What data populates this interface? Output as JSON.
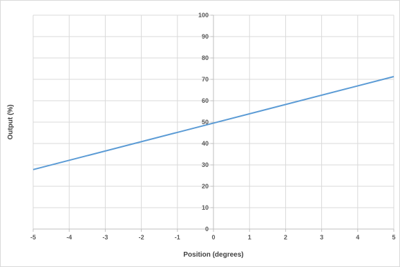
{
  "chart_data": {
    "type": "line",
    "title": "",
    "xlabel": "Position (degrees)",
    "ylabel": "Output (%)",
    "xlim": [
      -5,
      5
    ],
    "ylim": [
      0,
      100
    ],
    "x_ticks": [
      -5,
      -4,
      -3,
      -2,
      -1,
      0,
      1,
      2,
      3,
      4,
      5
    ],
    "y_ticks": [
      0,
      10,
      20,
      30,
      40,
      50,
      60,
      70,
      80,
      90,
      100
    ],
    "grid": true,
    "legend": "none",
    "series": [
      {
        "color": "#5b9bd5",
        "x": [
          -5,
          5
        ],
        "y": [
          27.8,
          71.3
        ]
      }
    ]
  }
}
